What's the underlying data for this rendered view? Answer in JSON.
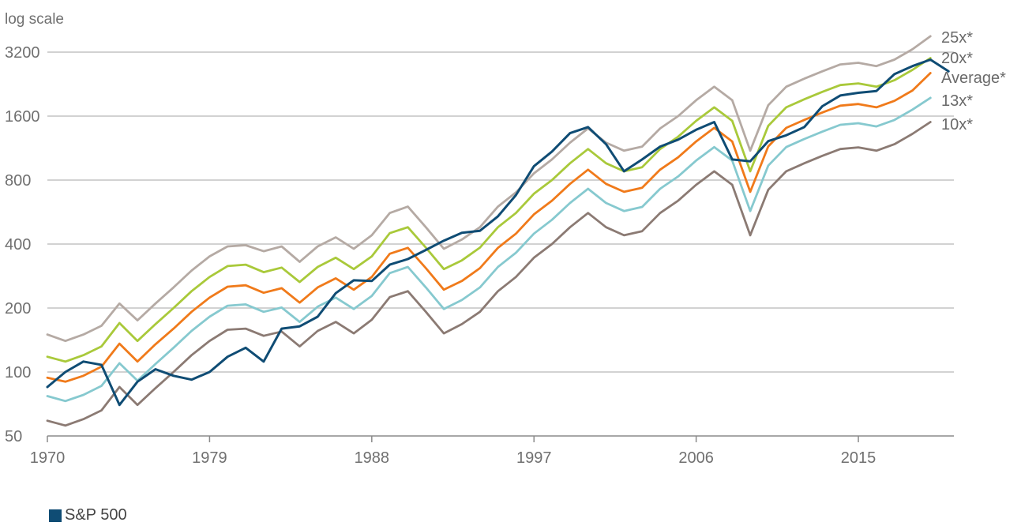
{
  "chart_data": {
    "type": "line",
    "ylabel": "log scale",
    "y_scale": "log",
    "ylim": [
      50,
      3200
    ],
    "y_ticks": [
      50,
      100,
      200,
      400,
      800,
      1600,
      3200
    ],
    "y_tick_labels": [
      "50",
      "100",
      "200",
      "400",
      "800",
      "1600",
      "3200"
    ],
    "xlim": [
      1970,
      2020.3
    ],
    "x_ticks": [
      1970,
      1979,
      1988,
      1997,
      2006,
      2015
    ],
    "x_tick_labels": [
      "1970",
      "1979",
      "1988",
      "1997",
      "2006",
      "2015"
    ],
    "grid": true,
    "legend": {
      "position": "bottom-left",
      "entries": [
        "S&P 500"
      ]
    },
    "series": [
      {
        "name": "25x*",
        "color": "#b5aaa4",
        "points": [
          [
            1970,
            150
          ],
          [
            1971,
            140
          ],
          [
            1972,
            150
          ],
          [
            1973,
            165
          ],
          [
            1974,
            210
          ],
          [
            1975,
            175
          ],
          [
            1976,
            210
          ],
          [
            1977,
            250
          ],
          [
            1978,
            300
          ],
          [
            1979,
            350
          ],
          [
            1980,
            390
          ],
          [
            1981,
            395
          ],
          [
            1982,
            370
          ],
          [
            1983,
            390
          ],
          [
            1984,
            330
          ],
          [
            1985,
            390
          ],
          [
            1986,
            430
          ],
          [
            1987,
            380
          ],
          [
            1988,
            440
          ],
          [
            1989,
            560
          ],
          [
            1990,
            600
          ],
          [
            1991,
            480
          ],
          [
            1992,
            380
          ],
          [
            1993,
            420
          ],
          [
            1994,
            480
          ],
          [
            1995,
            600
          ],
          [
            1996,
            700
          ],
          [
            1997,
            860
          ],
          [
            1998,
            1000
          ],
          [
            1999,
            1200
          ],
          [
            2000,
            1400
          ],
          [
            2001,
            1200
          ],
          [
            2002,
            1100
          ],
          [
            2003,
            1150
          ],
          [
            2004,
            1400
          ],
          [
            2005,
            1600
          ],
          [
            2006,
            1900
          ],
          [
            2007,
            2200
          ],
          [
            2008,
            1900
          ],
          [
            2009,
            1100
          ],
          [
            2010,
            1800
          ],
          [
            2011,
            2200
          ],
          [
            2012,
            2400
          ],
          [
            2013,
            2600
          ],
          [
            2014,
            2800
          ],
          [
            2015,
            2850
          ],
          [
            2016,
            2750
          ],
          [
            2017,
            2950
          ],
          [
            2018,
            3300
          ],
          [
            2019,
            3800
          ]
        ]
      },
      {
        "name": "20x*",
        "color": "#a9c93a",
        "points": [
          [
            1970,
            118
          ],
          [
            1971,
            112
          ],
          [
            1972,
            120
          ],
          [
            1973,
            132
          ],
          [
            1974,
            170
          ],
          [
            1975,
            140
          ],
          [
            1976,
            168
          ],
          [
            1977,
            200
          ],
          [
            1978,
            240
          ],
          [
            1979,
            280
          ],
          [
            1980,
            315
          ],
          [
            1981,
            320
          ],
          [
            1982,
            295
          ],
          [
            1983,
            310
          ],
          [
            1984,
            265
          ],
          [
            1985,
            312
          ],
          [
            1986,
            345
          ],
          [
            1987,
            305
          ],
          [
            1988,
            350
          ],
          [
            1989,
            450
          ],
          [
            1990,
            480
          ],
          [
            1991,
            385
          ],
          [
            1992,
            305
          ],
          [
            1993,
            335
          ],
          [
            1994,
            385
          ],
          [
            1995,
            480
          ],
          [
            1996,
            560
          ],
          [
            1997,
            690
          ],
          [
            1998,
            800
          ],
          [
            1999,
            960
          ],
          [
            2000,
            1120
          ],
          [
            2001,
            960
          ],
          [
            2002,
            880
          ],
          [
            2003,
            920
          ],
          [
            2004,
            1120
          ],
          [
            2005,
            1280
          ],
          [
            2006,
            1520
          ],
          [
            2007,
            1760
          ],
          [
            2008,
            1520
          ],
          [
            2009,
            880
          ],
          [
            2010,
            1440
          ],
          [
            2011,
            1760
          ],
          [
            2012,
            1920
          ],
          [
            2013,
            2080
          ],
          [
            2014,
            2240
          ],
          [
            2015,
            2280
          ],
          [
            2016,
            2200
          ],
          [
            2017,
            2360
          ],
          [
            2018,
            2640
          ],
          [
            2019,
            3000
          ]
        ]
      },
      {
        "name": "Average*",
        "color": "#f07a1a",
        "points": [
          [
            1970,
            94
          ],
          [
            1971,
            90
          ],
          [
            1972,
            96
          ],
          [
            1973,
            106
          ],
          [
            1974,
            136
          ],
          [
            1975,
            112
          ],
          [
            1976,
            135
          ],
          [
            1977,
            160
          ],
          [
            1978,
            192
          ],
          [
            1979,
            224
          ],
          [
            1980,
            252
          ],
          [
            1981,
            256
          ],
          [
            1982,
            236
          ],
          [
            1983,
            248
          ],
          [
            1984,
            212
          ],
          [
            1985,
            250
          ],
          [
            1986,
            276
          ],
          [
            1987,
            244
          ],
          [
            1988,
            280
          ],
          [
            1989,
            360
          ],
          [
            1990,
            384
          ],
          [
            1991,
            308
          ],
          [
            1992,
            244
          ],
          [
            1993,
            268
          ],
          [
            1994,
            308
          ],
          [
            1995,
            384
          ],
          [
            1996,
            448
          ],
          [
            1997,
            552
          ],
          [
            1998,
            640
          ],
          [
            1999,
            768
          ],
          [
            2000,
            896
          ],
          [
            2001,
            768
          ],
          [
            2002,
            704
          ],
          [
            2003,
            736
          ],
          [
            2004,
            896
          ],
          [
            2005,
            1024
          ],
          [
            2006,
            1216
          ],
          [
            2007,
            1408
          ],
          [
            2008,
            1216
          ],
          [
            2009,
            704
          ],
          [
            2010,
            1152
          ],
          [
            2011,
            1408
          ],
          [
            2012,
            1536
          ],
          [
            2013,
            1664
          ],
          [
            2014,
            1792
          ],
          [
            2015,
            1824
          ],
          [
            2016,
            1760
          ],
          [
            2017,
            1888
          ],
          [
            2018,
            2112
          ],
          [
            2019,
            2550
          ]
        ]
      },
      {
        "name": "13x*",
        "color": "#86c9cf",
        "points": [
          [
            1970,
            77
          ],
          [
            1971,
            73
          ],
          [
            1972,
            78
          ],
          [
            1973,
            86
          ],
          [
            1974,
            110
          ],
          [
            1975,
            91
          ],
          [
            1976,
            109
          ],
          [
            1977,
            130
          ],
          [
            1978,
            156
          ],
          [
            1979,
            182
          ],
          [
            1980,
            205
          ],
          [
            1981,
            208
          ],
          [
            1982,
            192
          ],
          [
            1983,
            201
          ],
          [
            1984,
            172
          ],
          [
            1985,
            203
          ],
          [
            1986,
            224
          ],
          [
            1987,
            198
          ],
          [
            1988,
            228
          ],
          [
            1989,
            292
          ],
          [
            1990,
            312
          ],
          [
            1991,
            250
          ],
          [
            1992,
            198
          ],
          [
            1993,
            218
          ],
          [
            1994,
            250
          ],
          [
            1995,
            312
          ],
          [
            1996,
            364
          ],
          [
            1997,
            448
          ],
          [
            1998,
            520
          ],
          [
            1999,
            624
          ],
          [
            2000,
            728
          ],
          [
            2001,
            624
          ],
          [
            2002,
            572
          ],
          [
            2003,
            598
          ],
          [
            2004,
            728
          ],
          [
            2005,
            832
          ],
          [
            2006,
            988
          ],
          [
            2007,
            1144
          ],
          [
            2008,
            988
          ],
          [
            2009,
            572
          ],
          [
            2010,
            936
          ],
          [
            2011,
            1144
          ],
          [
            2012,
            1248
          ],
          [
            2013,
            1352
          ],
          [
            2014,
            1456
          ],
          [
            2015,
            1482
          ],
          [
            2016,
            1430
          ],
          [
            2017,
            1534
          ],
          [
            2018,
            1716
          ],
          [
            2019,
            1950
          ]
        ]
      },
      {
        "name": "10x*",
        "color": "#8b7a73",
        "points": [
          [
            1970,
            59
          ],
          [
            1971,
            56
          ],
          [
            1972,
            60
          ],
          [
            1973,
            66
          ],
          [
            1974,
            85
          ],
          [
            1975,
            70
          ],
          [
            1976,
            84
          ],
          [
            1977,
            100
          ],
          [
            1978,
            120
          ],
          [
            1979,
            140
          ],
          [
            1980,
            158
          ],
          [
            1981,
            160
          ],
          [
            1982,
            148
          ],
          [
            1983,
            155
          ],
          [
            1984,
            132
          ],
          [
            1985,
            156
          ],
          [
            1986,
            172
          ],
          [
            1987,
            152
          ],
          [
            1988,
            176
          ],
          [
            1989,
            225
          ],
          [
            1990,
            240
          ],
          [
            1991,
            192
          ],
          [
            1992,
            152
          ],
          [
            1993,
            168
          ],
          [
            1994,
            192
          ],
          [
            1995,
            240
          ],
          [
            1996,
            280
          ],
          [
            1997,
            345
          ],
          [
            1998,
            400
          ],
          [
            1999,
            480
          ],
          [
            2000,
            560
          ],
          [
            2001,
            480
          ],
          [
            2002,
            440
          ],
          [
            2003,
            460
          ],
          [
            2004,
            560
          ],
          [
            2005,
            640
          ],
          [
            2006,
            760
          ],
          [
            2007,
            880
          ],
          [
            2008,
            760
          ],
          [
            2009,
            440
          ],
          [
            2010,
            720
          ],
          [
            2011,
            880
          ],
          [
            2012,
            960
          ],
          [
            2013,
            1040
          ],
          [
            2014,
            1120
          ],
          [
            2015,
            1140
          ],
          [
            2016,
            1100
          ],
          [
            2017,
            1180
          ],
          [
            2018,
            1320
          ],
          [
            2019,
            1500
          ]
        ]
      },
      {
        "name": "S&P 500",
        "color": "#0f4c74",
        "points": [
          [
            1970,
            85
          ],
          [
            1971,
            100
          ],
          [
            1972,
            112
          ],
          [
            1973,
            108
          ],
          [
            1974,
            70
          ],
          [
            1975,
            90
          ],
          [
            1976,
            103
          ],
          [
            1977,
            96
          ],
          [
            1978,
            92
          ],
          [
            1979,
            100
          ],
          [
            1980,
            118
          ],
          [
            1981,
            130
          ],
          [
            1982,
            112
          ],
          [
            1983,
            160
          ],
          [
            1984,
            164
          ],
          [
            1985,
            182
          ],
          [
            1986,
            235
          ],
          [
            1987,
            270
          ],
          [
            1988,
            268
          ],
          [
            1989,
            320
          ],
          [
            1990,
            340
          ],
          [
            1991,
            375
          ],
          [
            1992,
            415
          ],
          [
            1993,
            452
          ],
          [
            1994,
            462
          ],
          [
            1995,
            540
          ],
          [
            1996,
            680
          ],
          [
            1997,
            930
          ],
          [
            1998,
            1090
          ],
          [
            1999,
            1330
          ],
          [
            2000,
            1420
          ],
          [
            2001,
            1180
          ],
          [
            2002,
            880
          ],
          [
            2003,
            1000
          ],
          [
            2004,
            1150
          ],
          [
            2005,
            1240
          ],
          [
            2006,
            1380
          ],
          [
            2007,
            1500
          ],
          [
            2008,
            1000
          ],
          [
            2009,
            980
          ],
          [
            2010,
            1220
          ],
          [
            2011,
            1300
          ],
          [
            2012,
            1420
          ],
          [
            2013,
            1780
          ],
          [
            2014,
            2000
          ],
          [
            2015,
            2060
          ],
          [
            2016,
            2100
          ],
          [
            2017,
            2520
          ],
          [
            2018,
            2750
          ],
          [
            2019,
            2950
          ],
          [
            2020,
            2600
          ]
        ]
      }
    ],
    "right_labels": [
      "25x*",
      "20x*",
      "Average*",
      "13x*",
      "10x*"
    ]
  }
}
